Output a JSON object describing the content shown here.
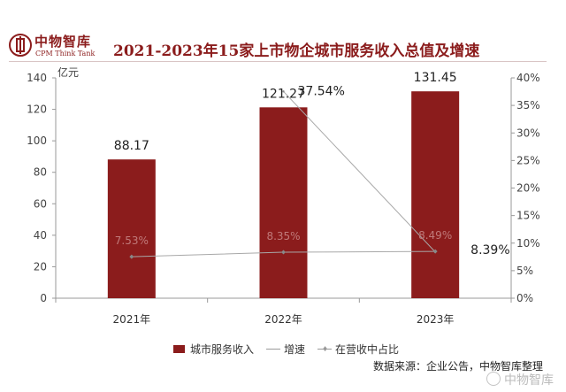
{
  "brand": {
    "name_cn": "中物智库",
    "name_en": "CPM Think Tank"
  },
  "title": "2021-2023年15家上市物企城市服务收入总值及增速",
  "chart_data": {
    "type": "bar",
    "categories": [
      "2021年",
      "2022年",
      "2023年"
    ],
    "y_left": {
      "unit": "亿元",
      "ylim": [
        0,
        140
      ],
      "ticks": [
        0,
        20,
        40,
        60,
        80,
        100,
        120,
        140
      ]
    },
    "y_right": {
      "ylim": [
        0,
        40
      ],
      "ticks": [
        "0%",
        "5%",
        "10%",
        "15%",
        "20%",
        "25%",
        "30%",
        "35%",
        "40%"
      ]
    },
    "series": [
      {
        "name": "城市服务收入",
        "kind": "bar",
        "axis": "left",
        "values": [
          88.17,
          121.27,
          131.45
        ],
        "labels": [
          "88.17",
          "121.27",
          "131.45"
        ]
      },
      {
        "name": "增速",
        "kind": "line",
        "axis": "right",
        "values": [
          null,
          37.54,
          8.39
        ],
        "labels": [
          "",
          "37.54%",
          "8.39%"
        ]
      },
      {
        "name": "在营收中占比",
        "kind": "line",
        "axis": "right",
        "values": [
          7.53,
          8.35,
          8.49
        ],
        "labels": [
          "7.53%",
          "8.35%",
          "8.49%"
        ]
      }
    ],
    "grid": false
  },
  "legend": {
    "bar_label": "城市服务收入",
    "growth_label": "增速",
    "share_label": "在营收中占比"
  },
  "source": "数据来源：企业公告，中物智库整理",
  "watermark": "中物智库",
  "colors": {
    "bar": "#8b1c1c",
    "brand": "#8b1c1c",
    "line": "#a8a8a8"
  }
}
